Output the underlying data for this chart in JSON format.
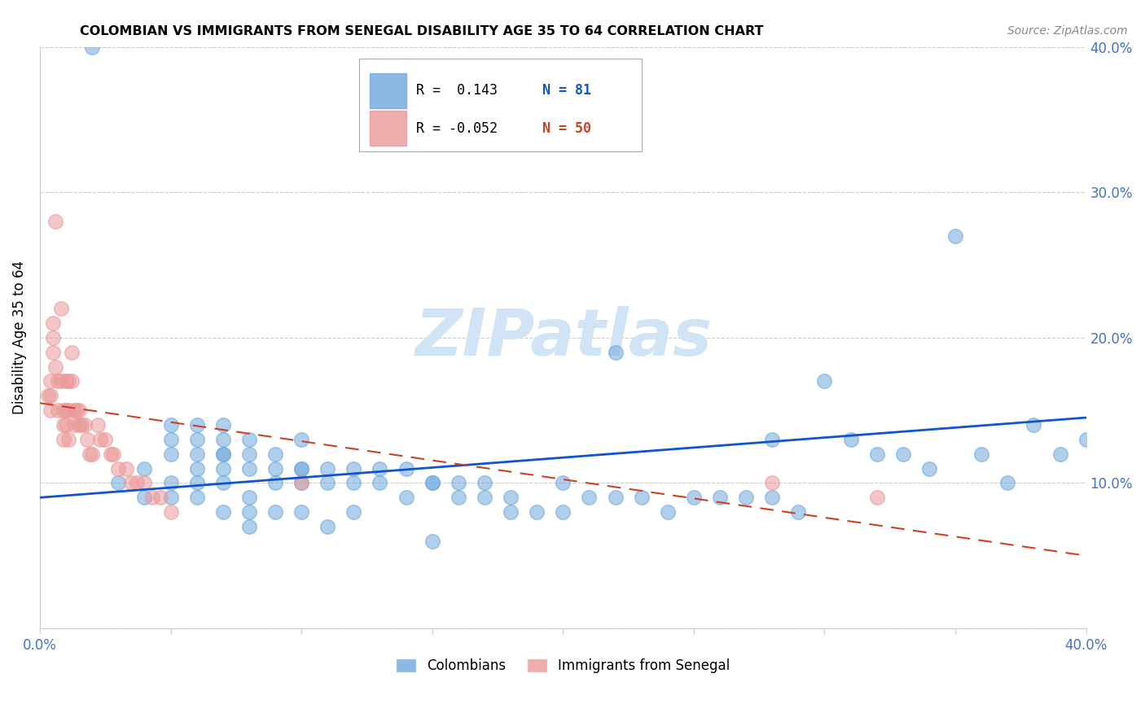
{
  "title": "COLOMBIAN VS IMMIGRANTS FROM SENEGAL DISABILITY AGE 35 TO 64 CORRELATION CHART",
  "source": "Source: ZipAtlas.com",
  "ylabel": "Disability Age 35 to 64",
  "xlim": [
    0.0,
    0.4
  ],
  "ylim": [
    0.0,
    0.4
  ],
  "xticks": [
    0.0,
    0.05,
    0.1,
    0.15,
    0.2,
    0.25,
    0.3,
    0.35,
    0.4
  ],
  "xticklabels": [
    "0.0%",
    "",
    "",
    "",
    "",
    "",
    "",
    "",
    "40.0%"
  ],
  "yticks": [
    0.0,
    0.1,
    0.2,
    0.3,
    0.4
  ],
  "yticklabels_right": [
    "",
    "10.0%",
    "20.0%",
    "30.0%",
    "40.0%"
  ],
  "colombians_R": 0.143,
  "colombians_N": 81,
  "senegal_R": -0.052,
  "senegal_N": 50,
  "blue_color": "#6fa8dc",
  "pink_color": "#ea9999",
  "blue_line_color": "#1155cc",
  "pink_line_color": "#cc4125",
  "tick_color": "#4472c4",
  "watermark_color": "#d0e4f5",
  "blue_scatter_x": [
    0.02,
    0.03,
    0.04,
    0.04,
    0.05,
    0.05,
    0.05,
    0.05,
    0.05,
    0.06,
    0.06,
    0.06,
    0.06,
    0.06,
    0.06,
    0.07,
    0.07,
    0.07,
    0.07,
    0.07,
    0.07,
    0.07,
    0.08,
    0.08,
    0.08,
    0.08,
    0.08,
    0.08,
    0.09,
    0.09,
    0.09,
    0.09,
    0.1,
    0.1,
    0.1,
    0.1,
    0.1,
    0.11,
    0.11,
    0.11,
    0.12,
    0.12,
    0.12,
    0.13,
    0.13,
    0.14,
    0.14,
    0.15,
    0.15,
    0.15,
    0.16,
    0.16,
    0.17,
    0.17,
    0.18,
    0.18,
    0.19,
    0.2,
    0.2,
    0.21,
    0.22,
    0.23,
    0.24,
    0.25,
    0.26,
    0.27,
    0.28,
    0.29,
    0.3,
    0.31,
    0.32,
    0.33,
    0.34,
    0.35,
    0.36,
    0.37,
    0.38,
    0.39,
    0.4,
    0.22,
    0.28
  ],
  "blue_scatter_y": [
    0.4,
    0.1,
    0.11,
    0.09,
    0.14,
    0.13,
    0.12,
    0.1,
    0.09,
    0.14,
    0.13,
    0.12,
    0.11,
    0.1,
    0.09,
    0.14,
    0.13,
    0.12,
    0.12,
    0.11,
    0.1,
    0.08,
    0.13,
    0.12,
    0.11,
    0.09,
    0.08,
    0.07,
    0.12,
    0.11,
    0.1,
    0.08,
    0.13,
    0.11,
    0.11,
    0.1,
    0.08,
    0.11,
    0.1,
    0.07,
    0.11,
    0.1,
    0.08,
    0.11,
    0.1,
    0.11,
    0.09,
    0.1,
    0.1,
    0.06,
    0.1,
    0.09,
    0.1,
    0.09,
    0.09,
    0.08,
    0.08,
    0.1,
    0.08,
    0.09,
    0.09,
    0.09,
    0.08,
    0.09,
    0.09,
    0.09,
    0.09,
    0.08,
    0.17,
    0.13,
    0.12,
    0.12,
    0.11,
    0.27,
    0.12,
    0.1,
    0.14,
    0.12,
    0.13,
    0.19,
    0.13
  ],
  "pink_scatter_x": [
    0.003,
    0.004,
    0.004,
    0.004,
    0.005,
    0.005,
    0.005,
    0.006,
    0.006,
    0.007,
    0.007,
    0.008,
    0.008,
    0.009,
    0.009,
    0.009,
    0.01,
    0.01,
    0.01,
    0.011,
    0.011,
    0.011,
    0.012,
    0.012,
    0.013,
    0.013,
    0.014,
    0.015,
    0.015,
    0.016,
    0.017,
    0.018,
    0.019,
    0.02,
    0.022,
    0.023,
    0.025,
    0.027,
    0.028,
    0.03,
    0.033,
    0.035,
    0.037,
    0.04,
    0.043,
    0.046,
    0.05,
    0.1,
    0.28,
    0.32
  ],
  "pink_scatter_y": [
    0.16,
    0.17,
    0.16,
    0.15,
    0.21,
    0.2,
    0.19,
    0.28,
    0.18,
    0.17,
    0.15,
    0.22,
    0.17,
    0.15,
    0.14,
    0.13,
    0.17,
    0.15,
    0.14,
    0.17,
    0.15,
    0.13,
    0.19,
    0.17,
    0.15,
    0.14,
    0.15,
    0.15,
    0.14,
    0.14,
    0.14,
    0.13,
    0.12,
    0.12,
    0.14,
    0.13,
    0.13,
    0.12,
    0.12,
    0.11,
    0.11,
    0.1,
    0.1,
    0.1,
    0.09,
    0.09,
    0.08,
    0.1,
    0.1,
    0.09
  ],
  "legend_R_blue": "R =  0.143",
  "legend_N_blue": "N = 81",
  "legend_R_pink": "R = -0.052",
  "legend_N_pink": "N = 50"
}
